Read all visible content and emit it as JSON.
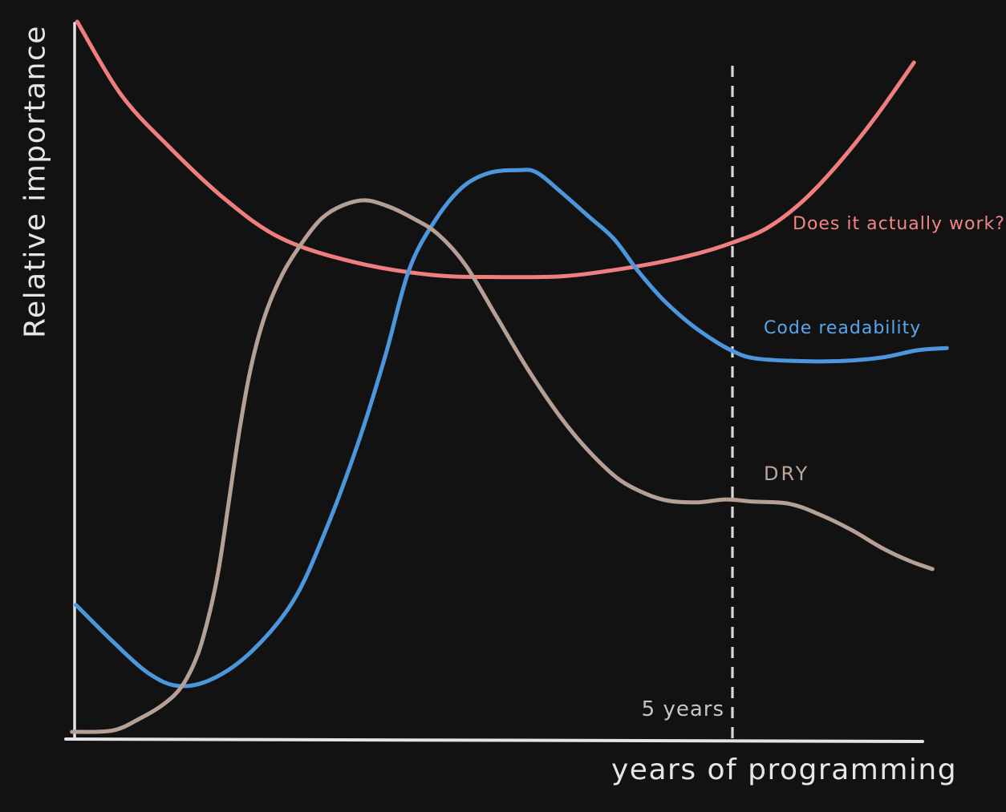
{
  "canvas": {
    "background": "#121212"
  },
  "chart_data": {
    "type": "line",
    "title": "",
    "xlabel": "years of programming",
    "ylabel": "Relative importance",
    "x_range_years": [
      0,
      6.6
    ],
    "y_range": [
      0,
      100
    ],
    "grid": false,
    "legend": "inline-labels-next-to-curves",
    "axis_color": "#e3e3e3",
    "x_marker": {
      "label": "5 years",
      "x_years": 5,
      "label_color": "#c6c6c6",
      "line_color": "#d9d9d9",
      "line_style": "dashed"
    },
    "series": [
      {
        "id": "does-it-actually-work",
        "label": "Does it actually work?",
        "color": "#ef7e7e",
        "label_color": "#f28585",
        "points": [
          [
            0.02,
            100.0
          ],
          [
            0.35,
            89.9
          ],
          [
            0.71,
            82.7
          ],
          [
            1.14,
            75.3
          ],
          [
            1.57,
            69.8
          ],
          [
            2.12,
            66.5
          ],
          [
            2.71,
            64.7
          ],
          [
            3.21,
            64.4
          ],
          [
            3.7,
            64.5
          ],
          [
            4.07,
            65.3
          ],
          [
            4.43,
            66.4
          ],
          [
            4.74,
            67.7
          ],
          [
            5.0,
            69.2
          ],
          [
            5.26,
            71.2
          ],
          [
            5.53,
            74.9
          ],
          [
            5.8,
            80.1
          ],
          [
            6.08,
            86.5
          ],
          [
            6.38,
            94.3
          ]
        ]
      },
      {
        "id": "code-readability",
        "label": "Code readability",
        "color": "#4b96dd",
        "label_color": "#58a6ee",
        "points": [
          [
            0.01,
            18.7
          ],
          [
            0.29,
            13.6
          ],
          [
            0.56,
            9.2
          ],
          [
            0.79,
            7.4
          ],
          [
            1.05,
            8.4
          ],
          [
            1.35,
            12.3
          ],
          [
            1.66,
            19.2
          ],
          [
            1.9,
            28.7
          ],
          [
            2.15,
            41.0
          ],
          [
            2.36,
            53.3
          ],
          [
            2.54,
            65.3
          ],
          [
            2.73,
            72.0
          ],
          [
            2.94,
            76.8
          ],
          [
            3.15,
            78.9
          ],
          [
            3.37,
            79.3
          ],
          [
            3.51,
            79.0
          ],
          [
            3.7,
            76.2
          ],
          [
            3.91,
            72.8
          ],
          [
            4.1,
            69.7
          ],
          [
            4.28,
            65.3
          ],
          [
            4.46,
            61.5
          ],
          [
            4.65,
            58.3
          ],
          [
            4.83,
            55.9
          ],
          [
            5.0,
            54.1
          ],
          [
            5.16,
            53.1
          ],
          [
            5.47,
            52.7
          ],
          [
            5.84,
            52.7
          ],
          [
            6.14,
            53.2
          ],
          [
            6.41,
            54.2
          ],
          [
            6.63,
            54.5
          ]
        ]
      },
      {
        "id": "dry",
        "label": "DRY",
        "color": "#b5a096",
        "label_color": "#bca79c",
        "points": [
          [
            -0.02,
            1.0
          ],
          [
            0.29,
            1.2
          ],
          [
            0.5,
            2.9
          ],
          [
            0.68,
            4.9
          ],
          [
            0.82,
            7.5
          ],
          [
            0.94,
            12.0
          ],
          [
            1.03,
            17.9
          ],
          [
            1.1,
            24.2
          ],
          [
            1.17,
            32.8
          ],
          [
            1.25,
            42.7
          ],
          [
            1.34,
            51.8
          ],
          [
            1.45,
            59.2
          ],
          [
            1.58,
            64.8
          ],
          [
            1.73,
            69.2
          ],
          [
            1.88,
            72.6
          ],
          [
            2.04,
            74.4
          ],
          [
            2.21,
            75.1
          ],
          [
            2.39,
            74.2
          ],
          [
            2.57,
            72.6
          ],
          [
            2.76,
            70.4
          ],
          [
            2.97,
            66.1
          ],
          [
            3.2,
            59.1
          ],
          [
            3.45,
            51.4
          ],
          [
            3.7,
            44.7
          ],
          [
            3.91,
            40.1
          ],
          [
            4.13,
            36.3
          ],
          [
            4.34,
            34.2
          ],
          [
            4.52,
            33.2
          ],
          [
            4.74,
            33.0
          ],
          [
            4.95,
            33.4
          ],
          [
            5.16,
            33.1
          ],
          [
            5.43,
            32.8
          ],
          [
            5.65,
            31.4
          ],
          [
            5.9,
            29.2
          ],
          [
            6.14,
            26.6
          ],
          [
            6.35,
            24.8
          ],
          [
            6.52,
            23.7
          ]
        ]
      }
    ]
  }
}
